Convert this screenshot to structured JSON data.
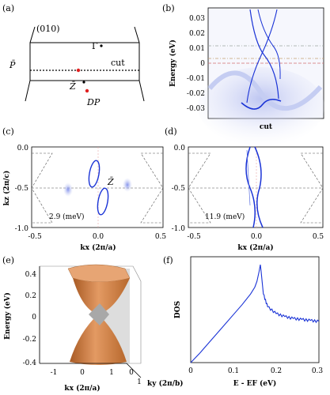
{
  "panel_labels": {
    "a": "(a)",
    "b": "(b)",
    "c": "(c)",
    "d": "(d)",
    "e": "(e)",
    "f": "(f)"
  },
  "panel_a": {
    "facet": "(010)",
    "gamma_bar": "Γ̄",
    "p_bar": "P̄",
    "z_bar": "Z̄",
    "dp": "DP",
    "cut": "cut"
  },
  "panel_b": {
    "ylabel": "Energy (eV)",
    "xlabel": "cut",
    "yticks": [
      "0.03",
      "0.02",
      "0.01",
      "0",
      "-0.01",
      "-0.02",
      "-0.03"
    ]
  },
  "panel_c": {
    "ylabel": "kz (2π/c)",
    "xlabel": "kx (2π/a)",
    "yticks": [
      "0.0",
      "-0.5",
      "-1.0"
    ],
    "xticks": [
      "-0.5",
      "0.0",
      "0.5"
    ],
    "energy": "2.9 (meV)",
    "z_bar": "Z̄"
  },
  "panel_d": {
    "xlabel": "kx (2π/a)",
    "yticks": [
      "0.0",
      "-0.5",
      "-1.0"
    ],
    "xticks": [
      "-0.5",
      "0.0",
      "0.5"
    ],
    "energy": "11.9 (meV)"
  },
  "panel_e": {
    "ylabel": "Energy (eV)",
    "xlabel": "kx (2π/a)",
    "ylabel2": "ky (2π/b)",
    "zticks": [
      "0.4",
      "0.2",
      "0",
      "-0.2",
      "-0.4"
    ],
    "xticks": [
      "-1",
      "0",
      "1"
    ],
    "yticks": [
      "0",
      "1"
    ]
  },
  "panel_f": {
    "ylabel": "DOS",
    "xlabel": "E - EF (eV)",
    "xticks": [
      "0",
      "0.1",
      "0.2",
      "0.3"
    ]
  },
  "colors": {
    "band": "#1a33d6",
    "cone": "#d2864e",
    "red": "#e02020"
  },
  "chart_data": [
    {
      "type": "line",
      "panel": "f",
      "xlabel": "E - EF (eV)",
      "ylabel": "DOS",
      "xlim": [
        0,
        0.3
      ],
      "x": [
        0,
        0.02,
        0.04,
        0.06,
        0.08,
        0.1,
        0.12,
        0.14,
        0.15,
        0.155,
        0.16,
        0.163,
        0.165,
        0.17,
        0.18,
        0.2,
        0.22,
        0.24,
        0.26,
        0.28,
        0.3
      ],
      "y": [
        0,
        0.09,
        0.19,
        0.29,
        0.39,
        0.49,
        0.59,
        0.7,
        0.77,
        0.83,
        0.93,
        1.0,
        0.92,
        0.7,
        0.57,
        0.5,
        0.47,
        0.45,
        0.44,
        0.43,
        0.42
      ]
    }
  ]
}
